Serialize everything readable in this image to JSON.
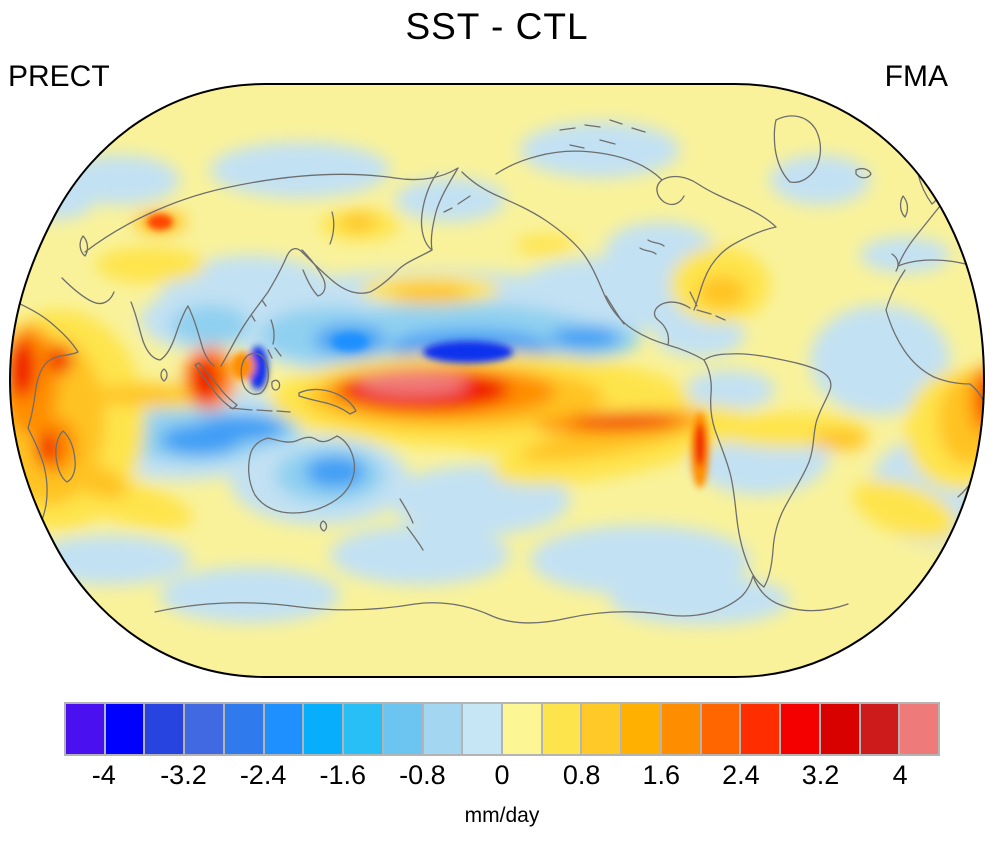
{
  "page": {
    "title": "SST - CTL",
    "left_label": "PRECT",
    "right_label": "FMA"
  },
  "chart_data": {
    "type": "heatmap",
    "subtype": "filled-contour global map (Robinson-style projection, Pacific-centered)",
    "title": "SST - CTL",
    "variable": "PRECT",
    "season": "FMA",
    "units": "mm/day",
    "contour_interval": 0.4,
    "value_range_shown": [
      -4.4,
      4.4
    ],
    "colorbar": {
      "tick_labels": [
        "-4",
        "-3.2",
        "-2.4",
        "-1.6",
        "-0.8",
        "0",
        "0.8",
        "1.6",
        "2.4",
        "3.2",
        "4"
      ],
      "tick_values": [
        -4,
        -3.2,
        -2.4,
        -1.6,
        -0.8,
        0,
        0.8,
        1.6,
        2.4,
        3.2,
        4
      ],
      "tick_boundary_indices": [
        1,
        3,
        5,
        7,
        9,
        11,
        13,
        15,
        17,
        19,
        21
      ],
      "cell_colors": [
        "#4a10f0",
        "#0000ff",
        "#2743e0",
        "#4169e1",
        "#2f7bed",
        "#1e90ff",
        "#06aefc",
        "#27bff5",
        "#6cc5f0",
        "#a3d6f0",
        "#c6e5f5",
        "#fdf694",
        "#fee44c",
        "#ffca28",
        "#ffb000",
        "#ff8d00",
        "#ff6600",
        "#ff2e00",
        "#f50000",
        "#d90000",
        "#cd1a1a",
        "#ef7a7a"
      ]
    },
    "map_colors": {
      "neutral_background": "#f9f29b",
      "weak_negative_fill": "#c2e1f3",
      "coastline": "#6e6e6e",
      "map_outline": "#000000"
    },
    "notable_anomalies": [
      "Strong positive precipitation anomaly (> 4 mm/day, salmon core ringed by red/orange) over the west-central equatorial Pacific near the dateline",
      "Narrow positive band (2-4 mm/day) extending east along ~5S to the South American coast",
      "Broad negative band (-1 to -4 mm/day) across the subtropical North Pacific with a deep blue core north of the positive blob",
      "Strong localized negative anomaly (< -3 mm/day) over Borneo, adjacent strong positive anomaly over Sumatra",
      "Positive anomalies (2-4 mm/day) over East Africa, Mozambique Channel and near Madagascar at both map edges",
      "Negative anomalies over the south Indian Ocean, Bay of Bengal and Coral Sea",
      "Mostly weak anomalies (within +/-0.8 mm/day) over mid and high latitudes"
    ]
  }
}
